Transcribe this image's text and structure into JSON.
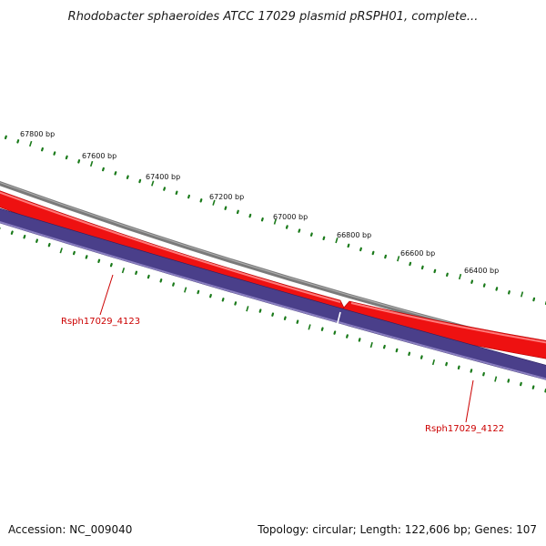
{
  "title": "Rhodobacter sphaeroides ATCC 17029 plasmid pRSPH01, complete...",
  "accession_label": "Accession: NC_009040",
  "summary_label": "Topology: circular; Length: 122,606 bp; Genes: 107",
  "ruler": {
    "labels": [
      "67800 bp",
      "67600 bp",
      "67400 bp",
      "67200 bp",
      "67000 bp",
      "66800 bp",
      "66600 bp",
      "66400 bp"
    ]
  },
  "genes": [
    {
      "name": "Rsph17029_4123",
      "strand": "forward"
    },
    {
      "name": "Rsph17029_4122",
      "strand": "forward"
    }
  ],
  "colors": {
    "tick": "#1a7a1a",
    "backbone": "#7a7a7a",
    "forward_gene": "#ee1111",
    "reverse_track": "#4a3f8a",
    "reverse_track_edge": "#8a7fc0",
    "gene_label": "#cc0000"
  }
}
